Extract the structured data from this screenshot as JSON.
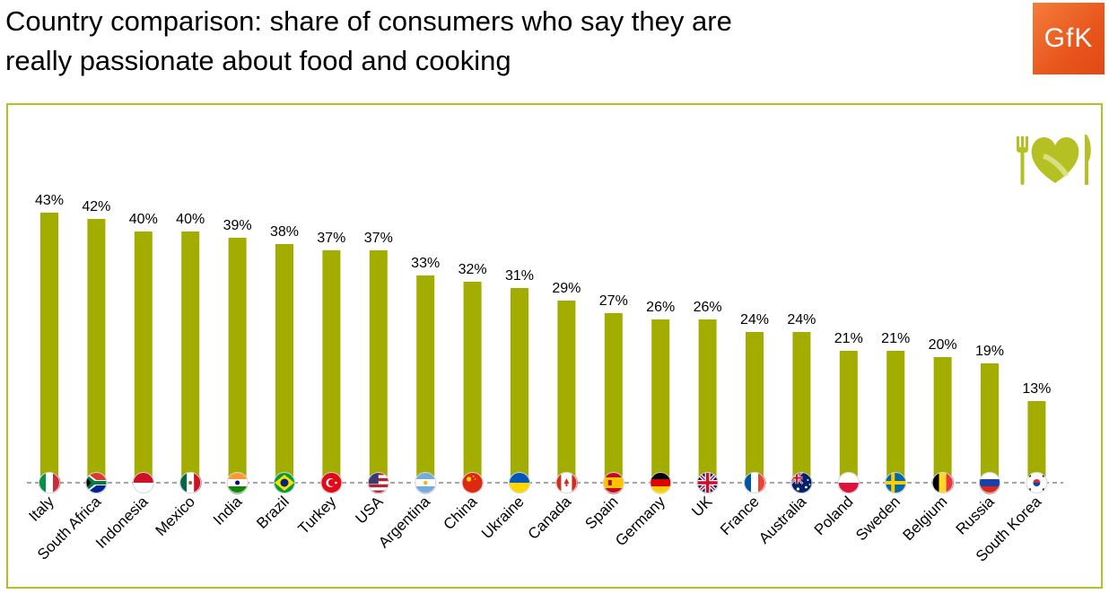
{
  "title": {
    "line1": "Country comparison: share of consumers who say they are",
    "line2": "really passionate about food and cooking"
  },
  "logo": {
    "text": "GfK",
    "color": "#e8561c"
  },
  "decoration": {
    "icon": "heart-fork-knife-icon"
  },
  "colors": {
    "bar": "#a2ad00",
    "frame": "#b5c023",
    "axis": "#888888",
    "icon": "#b5c023"
  },
  "chart_data": {
    "type": "bar",
    "title": "Country comparison: share of consumers who say they are really passionate about food and cooking",
    "xlabel": "",
    "ylabel": "",
    "ylim": [
      0,
      43
    ],
    "grid": false,
    "value_suffix": "%",
    "categories": [
      "Italy",
      "South Africa",
      "Indonesia",
      "Mexico",
      "India",
      "Brazil",
      "Turkey",
      "USA",
      "Argentina",
      "China",
      "Ukraine",
      "Canada",
      "Spain",
      "Germany",
      "UK",
      "France",
      "Australia",
      "Poland",
      "Sweden",
      "Belgium",
      "Russia",
      "South Korea"
    ],
    "values": [
      43,
      42,
      40,
      40,
      39,
      38,
      37,
      37,
      33,
      32,
      31,
      29,
      27,
      26,
      26,
      24,
      24,
      21,
      21,
      20,
      19,
      13
    ],
    "flag_icons": [
      "italy-flag-icon",
      "south-africa-flag-icon",
      "indonesia-flag-icon",
      "mexico-flag-icon",
      "india-flag-icon",
      "brazil-flag-icon",
      "turkey-flag-icon",
      "usa-flag-icon",
      "argentina-flag-icon",
      "china-flag-icon",
      "ukraine-flag-icon",
      "canada-flag-icon",
      "spain-flag-icon",
      "germany-flag-icon",
      "uk-flag-icon",
      "france-flag-icon",
      "australia-flag-icon",
      "poland-flag-icon",
      "sweden-flag-icon",
      "belgium-flag-icon",
      "russia-flag-icon",
      "south-korea-flag-icon"
    ]
  }
}
